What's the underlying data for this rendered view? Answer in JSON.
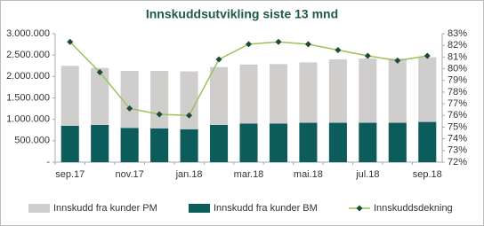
{
  "chart_data": {
    "type": "bar",
    "title": "Innskuddsutvikling siste 13 mnd",
    "stacked": true,
    "categories": [
      "sep.17",
      null,
      "nov.17",
      null,
      "jan.18",
      null,
      "mar.18",
      null,
      "mai.18",
      null,
      "jul.18",
      null,
      "sep.18"
    ],
    "series": [
      {
        "name": "Innskudd fra kunder PM",
        "color": "#d0cecd",
        "values": [
          1400000,
          1330000,
          1330000,
          1340000,
          1350000,
          1350000,
          1380000,
          1390000,
          1410000,
          1480000,
          1500000,
          1500000,
          1510000
        ]
      },
      {
        "name": "Innskudd fra kunder BM",
        "color": "#0d5c5c",
        "values": [
          850000,
          870000,
          800000,
          790000,
          770000,
          870000,
          900000,
          900000,
          920000,
          920000,
          920000,
          920000,
          940000
        ]
      },
      {
        "name": "Innskuddsdekning",
        "type": "line",
        "axis": "y2",
        "color": "#9bc25a",
        "marker_color": "#1d4a36",
        "values": [
          82.3,
          79.7,
          76.6,
          76.1,
          76.0,
          80.8,
          82.1,
          82.3,
          82.1,
          81.6,
          81.1,
          80.7,
          81.1
        ]
      }
    ],
    "ylim": [
      0,
      3000000
    ],
    "yticks": [
      {
        "value": 0,
        "label": "-"
      },
      {
        "value": 500000,
        "label": "500.000"
      },
      {
        "value": 1000000,
        "label": "1.000.000"
      },
      {
        "value": 1500000,
        "label": "1.500.000"
      },
      {
        "value": 2000000,
        "label": "2.000.000"
      },
      {
        "value": 2500000,
        "label": "2.500.000"
      },
      {
        "value": 3000000,
        "label": "3.000.000"
      }
    ],
    "y2lim": [
      72,
      83
    ],
    "y2ticks": [
      {
        "value": 72,
        "label": "72%"
      },
      {
        "value": 73,
        "label": "73%"
      },
      {
        "value": 74,
        "label": "74%"
      },
      {
        "value": 75,
        "label": "75%"
      },
      {
        "value": 76,
        "label": "76%"
      },
      {
        "value": 77,
        "label": "77%"
      },
      {
        "value": 78,
        "label": "78%"
      },
      {
        "value": 79,
        "label": "79%"
      },
      {
        "value": 80,
        "label": "80%"
      },
      {
        "value": 81,
        "label": "81%"
      },
      {
        "value": 82,
        "label": "82%"
      },
      {
        "value": 83,
        "label": "83%"
      }
    ],
    "legend": "bottom"
  }
}
